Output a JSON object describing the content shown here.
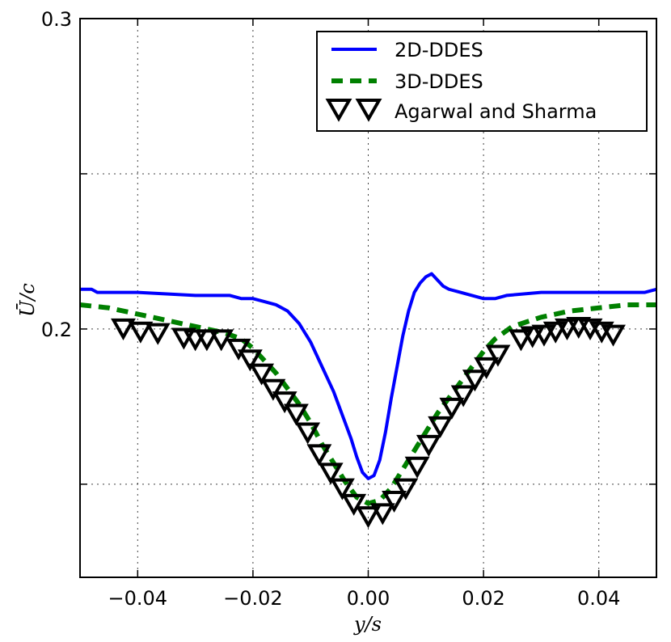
{
  "chart_data": {
    "type": "line",
    "title": "",
    "xlabel": "y/s",
    "ylabel": "Ū/c",
    "xlim": [
      -0.05,
      0.05
    ],
    "ylim": [
      0.12,
      0.3
    ],
    "grid": true,
    "legend_position": "top-right",
    "xticks": [
      -0.04,
      -0.02,
      0.0,
      0.02,
      0.04
    ],
    "xtick_labels": [
      "−0.04",
      "−0.02",
      "0.00",
      "0.02",
      "0.04"
    ],
    "yticks": [
      0.15,
      0.2,
      0.25,
      0.3
    ],
    "ytick_labels": [
      "",
      "0.2",
      "",
      "0.3"
    ],
    "series": [
      {
        "name": "2D-DDES",
        "style": "solid",
        "color": "#0000ff",
        "x": [
          -0.05,
          -0.048,
          -0.047,
          -0.04,
          -0.03,
          -0.024,
          -0.022,
          -0.02,
          -0.018,
          -0.016,
          -0.014,
          -0.012,
          -0.011,
          -0.01,
          -0.009,
          -0.008,
          -0.007,
          -0.006,
          -0.005,
          -0.004,
          -0.003,
          -0.002,
          -0.001,
          0.0,
          0.001,
          0.002,
          0.003,
          0.004,
          0.005,
          0.006,
          0.007,
          0.008,
          0.009,
          0.01,
          0.011,
          0.012,
          0.013,
          0.014,
          0.016,
          0.018,
          0.02,
          0.022,
          0.024,
          0.03,
          0.04,
          0.048,
          0.05
        ],
        "values": [
          0.2128,
          0.2128,
          0.2118,
          0.2118,
          0.2108,
          0.2108,
          0.2098,
          0.2098,
          0.2088,
          0.2078,
          0.2058,
          0.2018,
          0.1988,
          0.1958,
          0.1918,
          0.1878,
          0.1838,
          0.1798,
          0.1748,
          0.1698,
          0.1648,
          0.1588,
          0.1538,
          0.1518,
          0.1528,
          0.1578,
          0.1668,
          0.1778,
          0.1878,
          0.1978,
          0.2058,
          0.2118,
          0.2148,
          0.2168,
          0.2178,
          0.2158,
          0.2138,
          0.2128,
          0.2118,
          0.2108,
          0.2098,
          0.2098,
          0.2108,
          0.2118,
          0.2118,
          0.2118,
          0.2128
        ]
      },
      {
        "name": "3D-DDES",
        "style": "dashed",
        "color": "#008000",
        "x": [
          -0.05,
          -0.045,
          -0.04,
          -0.035,
          -0.03,
          -0.025,
          -0.022,
          -0.02,
          -0.018,
          -0.016,
          -0.014,
          -0.012,
          -0.01,
          -0.008,
          -0.006,
          -0.004,
          -0.002,
          0.0,
          0.002,
          0.004,
          0.006,
          0.008,
          0.01,
          0.012,
          0.014,
          0.016,
          0.018,
          0.02,
          0.022,
          0.025,
          0.03,
          0.035,
          0.04,
          0.045,
          0.05
        ],
        "values": [
          0.2078,
          0.2068,
          0.2048,
          0.2028,
          0.2008,
          0.1988,
          0.1968,
          0.1938,
          0.1898,
          0.1858,
          0.1808,
          0.1758,
          0.1698,
          0.1628,
          0.1568,
          0.1508,
          0.1458,
          0.1438,
          0.1448,
          0.1488,
          0.1548,
          0.1608,
          0.1668,
          0.1728,
          0.1778,
          0.1828,
          0.1878,
          0.1928,
          0.1968,
          0.2008,
          0.2038,
          0.2058,
          0.2068,
          0.2078,
          0.2078
        ]
      },
      {
        "name": "Agarwal and Sharma",
        "style": "markers",
        "marker": "triangle-down",
        "color": "#000000",
        "x": [
          -0.0425,
          -0.0395,
          -0.0365,
          -0.032,
          -0.03,
          -0.028,
          -0.0255,
          -0.0225,
          -0.0205,
          -0.0185,
          -0.0165,
          -0.0145,
          -0.0125,
          -0.0105,
          -0.0085,
          -0.0065,
          -0.0045,
          -0.0025,
          0.0,
          0.0025,
          0.0045,
          0.0065,
          0.0085,
          0.0105,
          0.0125,
          0.0145,
          0.0165,
          0.0185,
          0.0205,
          0.0225,
          0.0265,
          0.0285,
          0.0305,
          0.0325,
          0.0345,
          0.0365,
          0.0385,
          0.0405,
          0.0425
        ],
        "values": [
          0.2002,
          0.1992,
          0.1987,
          0.1972,
          0.1967,
          0.1967,
          0.1967,
          0.1937,
          0.1902,
          0.1857,
          0.1807,
          0.1767,
          0.1727,
          0.1667,
          0.1597,
          0.1537,
          0.1487,
          0.1437,
          0.1397,
          0.1407,
          0.1447,
          0.1487,
          0.1557,
          0.1627,
          0.1687,
          0.1747,
          0.1787,
          0.1837,
          0.1877,
          0.1917,
          0.1967,
          0.1977,
          0.1982,
          0.1992,
          0.2002,
          0.2007,
          0.2002,
          0.1992,
          0.1982
        ]
      }
    ]
  }
}
